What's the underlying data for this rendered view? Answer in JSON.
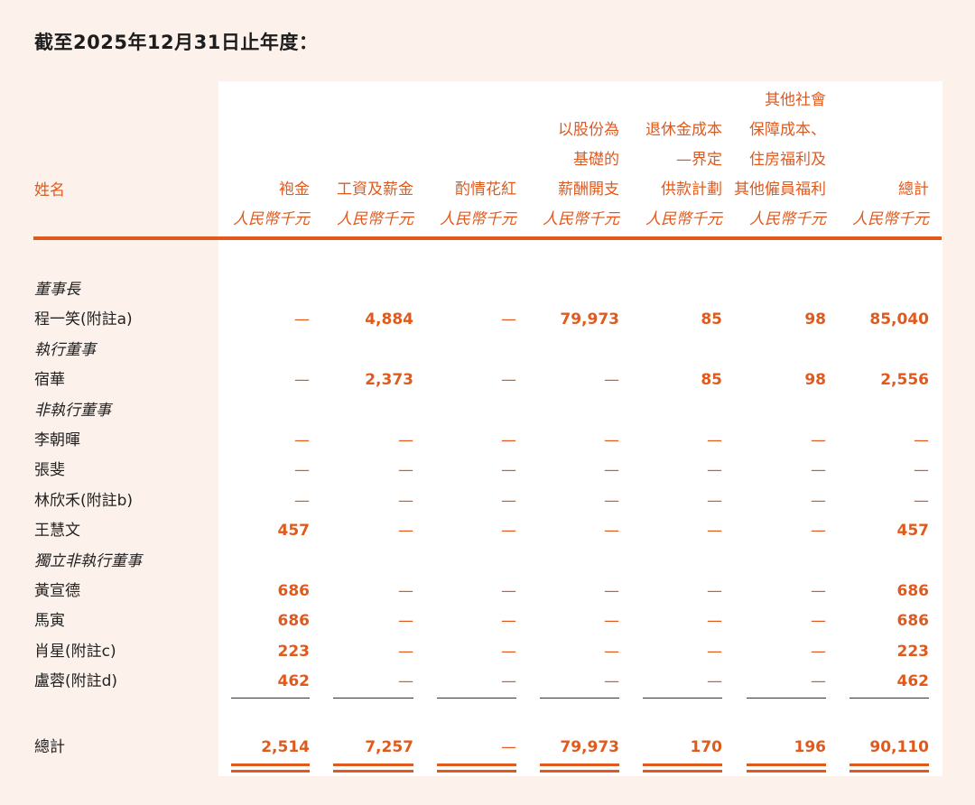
{
  "period_label": "截至2025年12月31日止年度：",
  "name_header": "姓名",
  "columns": [
    {
      "title_lines": [
        "袍金"
      ],
      "unit": "人民幣千元"
    },
    {
      "title_lines": [
        "工資及薪金"
      ],
      "unit": "人民幣千元"
    },
    {
      "title_lines": [
        "酌情花紅"
      ],
      "unit": "人民幣千元"
    },
    {
      "title_lines": [
        "以股份為",
        "基礎的",
        "薪酬開支"
      ],
      "unit": "人民幣千元"
    },
    {
      "title_lines": [
        "退休金成本",
        "—界定",
        "供款計劃"
      ],
      "unit": "人民幣千元"
    },
    {
      "title_lines": [
        "其他社會",
        "保障成本、",
        "住房福利及",
        "其他僱員福利"
      ],
      "unit": "人民幣千元"
    },
    {
      "title_lines": [
        "總計"
      ],
      "unit": "人民幣千元"
    }
  ],
  "rows": [
    {
      "kind": "category",
      "label": "董事長"
    },
    {
      "kind": "person",
      "label": "程一笑(附註a)",
      "values": [
        "—",
        "4,884",
        "—",
        "79,973",
        "85",
        "98",
        "85,040"
      ]
    },
    {
      "kind": "category",
      "label": "執行董事"
    },
    {
      "kind": "person",
      "label": "宿華",
      "values": [
        "—",
        "2,373",
        "—",
        "—",
        "85",
        "98",
        "2,556"
      ]
    },
    {
      "kind": "category",
      "label": "非執行董事"
    },
    {
      "kind": "person",
      "label": "李朝暉",
      "values": [
        "—",
        "—",
        "—",
        "—",
        "—",
        "—",
        "—"
      ]
    },
    {
      "kind": "person",
      "label": "張斐",
      "values": [
        "—",
        "—",
        "—",
        "—",
        "—",
        "—",
        "—"
      ]
    },
    {
      "kind": "person",
      "label": "林欣禾(附註b)",
      "values": [
        "—",
        "—",
        "—",
        "—",
        "—",
        "—",
        "—"
      ]
    },
    {
      "kind": "person",
      "label": "王慧文",
      "values": [
        "457",
        "—",
        "—",
        "—",
        "—",
        "—",
        "457"
      ]
    },
    {
      "kind": "category",
      "label": "獨立非執行董事"
    },
    {
      "kind": "person",
      "label": "黃宣德",
      "values": [
        "686",
        "—",
        "—",
        "—",
        "—",
        "—",
        "686"
      ]
    },
    {
      "kind": "person",
      "label": "馬寅",
      "values": [
        "686",
        "—",
        "—",
        "—",
        "—",
        "—",
        "686"
      ]
    },
    {
      "kind": "person",
      "label": "肖星(附註c)",
      "values": [
        "223",
        "—",
        "—",
        "—",
        "—",
        "—",
        "223"
      ]
    },
    {
      "kind": "person",
      "label": "盧蓉(附註d)",
      "values": [
        "462",
        "—",
        "—",
        "—",
        "—",
        "—",
        "462"
      ]
    }
  ],
  "total": {
    "label": "總計",
    "values": [
      "2,514",
      "7,257",
      "—",
      "79,973",
      "170",
      "196",
      "90,110"
    ]
  }
}
